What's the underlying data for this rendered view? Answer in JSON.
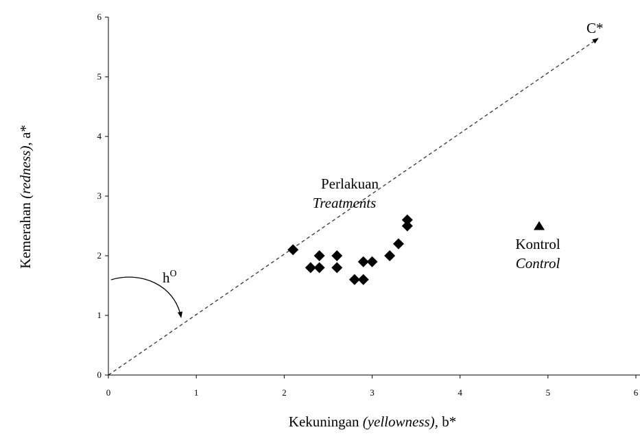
{
  "chart_data": {
    "type": "scatter",
    "x_label_parts": [
      "Kekuningan ",
      "(yellowness)",
      ", b*"
    ],
    "y_label_parts": [
      "Kemerahan ",
      "(redness)",
      ", a*"
    ],
    "xlim": [
      0,
      6
    ],
    "ylim": [
      0,
      6
    ],
    "xticks": [
      0,
      1,
      2,
      3,
      4,
      5,
      6
    ],
    "yticks": [
      0,
      1,
      2,
      3,
      4,
      5,
      6
    ],
    "series": [
      {
        "marker": "diamond",
        "color": "#000000",
        "x": [
          2.1,
          2.3,
          2.4,
          2.4,
          2.6,
          2.6,
          2.8,
          2.9,
          2.9,
          3.0,
          3.2,
          3.3,
          3.4,
          3.4
        ],
        "values": [
          2.1,
          1.8,
          1.8,
          2.0,
          2.0,
          1.8,
          1.6,
          1.6,
          1.9,
          1.9,
          2.0,
          2.2,
          2.5,
          2.6
        ]
      },
      {
        "marker": "triangle",
        "color": "#000000",
        "x": [
          4.9
        ],
        "values": [
          2.5
        ]
      }
    ],
    "annotations": {
      "treatment": [
        "Perlakuan",
        "Treatments"
      ],
      "control": [
        "Kontrol",
        "Control"
      ],
      "chroma": "C*",
      "hue": [
        "h",
        "O"
      ]
    }
  }
}
